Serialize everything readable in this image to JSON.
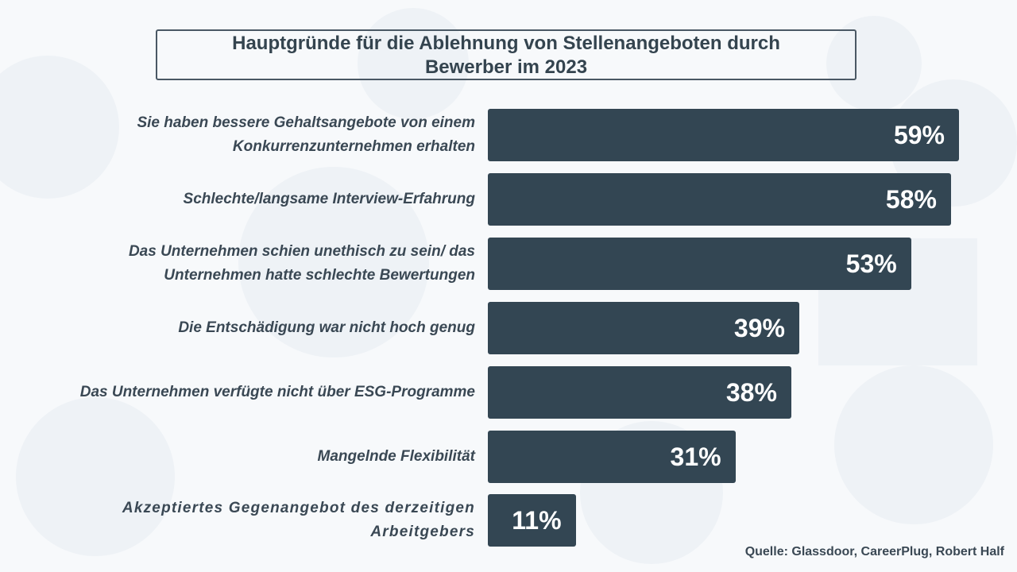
{
  "chart_data": {
    "type": "bar",
    "orientation": "horizontal",
    "title": "Hauptgründe für die Ablehnung von Stellenangeboten durch Bewerber im 2023",
    "title_lines": [
      "Hauptgründe für die Ablehnung von Stellenangeboten durch",
      "Bewerber im 2023"
    ],
    "categories": [
      "Sie haben bessere Gehaltsangebote von einem Konkurrenzunternehmen erhalten",
      "Schlechte/langsame Interview-Erfahrung",
      "Das Unternehmen schien unethisch zu sein/ das Unternehmen hatte schlechte Bewertungen",
      "Die Entschädigung war nicht hoch genug",
      "Das Unternehmen verfügte nicht über ESG-Programme",
      "Mangelnde Flexibilität",
      "Akzeptiertes Gegenangebot des derzeitigen Arbeitgebers"
    ],
    "values": [
      59,
      58,
      53,
      39,
      38,
      31,
      11
    ],
    "data_labels": [
      "59%",
      "58%",
      "53%",
      "39%",
      "38%",
      "31%",
      "11%"
    ],
    "unit": "%",
    "xlim": [
      0,
      59
    ],
    "grid": false,
    "bar_color": "#334653",
    "source": "Quelle: Glassdoor, CareerPlug, Robert Half"
  }
}
